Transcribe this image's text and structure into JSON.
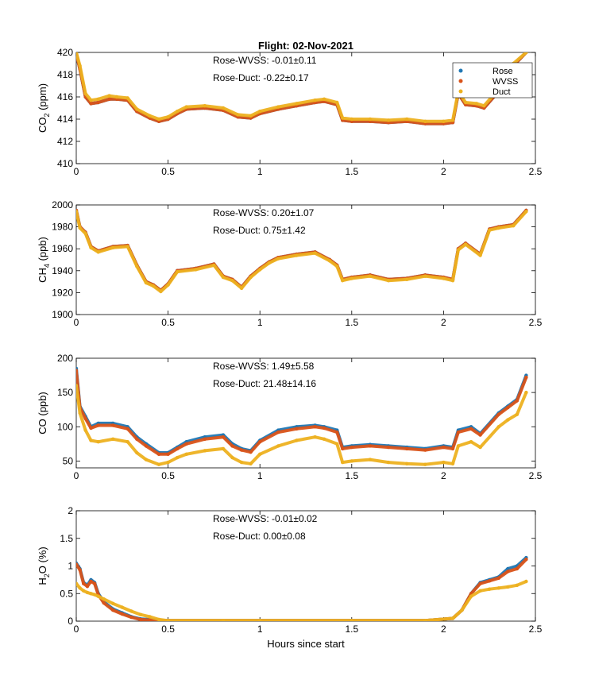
{
  "title": "Flight: 02-Nov-2021",
  "x_label": "Hours since start",
  "colors": {
    "Rose": "#1f77b4",
    "WVSS": "#d95319",
    "Duct": "#edb120"
  },
  "legend_entries": [
    "Rose",
    "WVSS",
    "Duct"
  ],
  "chart_data": [
    {
      "type": "scatter",
      "ylabel_main": "CO",
      "ylabel_sub": "2",
      "ylabel_unit": " (ppm)",
      "xlim": [
        0,
        2.5
      ],
      "ylim": [
        410,
        420
      ],
      "xticks": [
        "0",
        "0.5",
        "1",
        "1.5",
        "2",
        "2.5"
      ],
      "yticks": [
        "410",
        "412",
        "414",
        "416",
        "418",
        "420"
      ],
      "legend": {
        "placement": "top-right"
      },
      "annotations": [
        "Rose-WVSS: -0.01±0.11",
        "Rose-Duct: -0.22±0.17"
      ],
      "series": [
        {
          "name": "Rose",
          "x": [
            0,
            0.02,
            0.05,
            0.08,
            0.12,
            0.18,
            0.22,
            0.28,
            0.33,
            0.4,
            0.45,
            0.5,
            0.55,
            0.6,
            0.7,
            0.8,
            0.88,
            0.95,
            1.0,
            1.1,
            1.2,
            1.3,
            1.35,
            1.42,
            1.45,
            1.5,
            1.6,
            1.7,
            1.8,
            1.9,
            2.0,
            2.05,
            2.08,
            2.12,
            2.18,
            2.22,
            2.3,
            2.38,
            2.45
          ],
          "y": [
            419.9,
            418.5,
            416,
            415.4,
            415.5,
            415.8,
            415.8,
            415.7,
            414.7,
            414.1,
            413.8,
            414,
            414.5,
            414.9,
            415,
            414.8,
            414.2,
            414.1,
            414.5,
            414.9,
            415.2,
            415.5,
            415.6,
            415.3,
            413.9,
            413.8,
            413.8,
            413.7,
            413.8,
            413.6,
            413.6,
            413.7,
            416.3,
            415.3,
            415.2,
            415,
            416.5,
            418.8,
            420
          ]
        },
        {
          "name": "WVSS",
          "x": [
            0,
            0.02,
            0.05,
            0.08,
            0.12,
            0.18,
            0.22,
            0.28,
            0.33,
            0.4,
            0.45,
            0.5,
            0.55,
            0.6,
            0.7,
            0.8,
            0.88,
            0.95,
            1.0,
            1.1,
            1.2,
            1.3,
            1.35,
            1.42,
            1.45,
            1.5,
            1.6,
            1.7,
            1.8,
            1.9,
            2.0,
            2.05,
            2.08,
            2.12,
            2.18,
            2.22,
            2.3,
            2.38,
            2.45
          ],
          "y": [
            419.9,
            418.5,
            416,
            415.4,
            415.5,
            415.8,
            415.8,
            415.7,
            414.7,
            414.1,
            413.8,
            414,
            414.5,
            414.9,
            415,
            414.8,
            414.2,
            414.1,
            414.5,
            414.9,
            415.2,
            415.5,
            415.6,
            415.3,
            413.9,
            413.8,
            413.8,
            413.7,
            413.8,
            413.6,
            413.6,
            413.7,
            416.3,
            415.3,
            415.2,
            415,
            416.5,
            418.8,
            420
          ]
        },
        {
          "name": "Duct",
          "x": [
            0,
            0.02,
            0.05,
            0.08,
            0.12,
            0.18,
            0.22,
            0.28,
            0.33,
            0.4,
            0.45,
            0.5,
            0.55,
            0.6,
            0.7,
            0.8,
            0.88,
            0.95,
            1.0,
            1.1,
            1.2,
            1.3,
            1.35,
            1.42,
            1.45,
            1.5,
            1.6,
            1.7,
            1.8,
            1.9,
            2.0,
            2.05,
            2.08,
            2.12,
            2.18,
            2.22,
            2.3,
            2.38,
            2.45
          ],
          "y": [
            420,
            418.8,
            416.3,
            415.7,
            415.8,
            416.1,
            416,
            415.9,
            414.9,
            414.3,
            414,
            414.2,
            414.7,
            415.1,
            415.2,
            415,
            414.4,
            414.3,
            414.7,
            415.1,
            415.4,
            415.7,
            415.8,
            415.5,
            414.1,
            414,
            414,
            413.9,
            414,
            413.8,
            413.8,
            413.9,
            416.5,
            415.5,
            415.4,
            415.2,
            416.7,
            419,
            420
          ]
        }
      ]
    },
    {
      "type": "scatter",
      "ylabel_main": "CH",
      "ylabel_sub": "4",
      "ylabel_unit": " (ppb)",
      "xlim": [
        0,
        2.5
      ],
      "ylim": [
        1900,
        2000
      ],
      "xticks": [
        "0",
        "0.5",
        "1",
        "1.5",
        "2",
        "2.5"
      ],
      "yticks": [
        "1900",
        "1920",
        "1940",
        "1960",
        "1980",
        "2000"
      ],
      "annotations": [
        "Rose-WVSS: 0.20±1.07",
        "Rose-Duct: 0.75±1.42"
      ],
      "series": [
        {
          "name": "Rose",
          "x": [
            0,
            0.02,
            0.05,
            0.08,
            0.12,
            0.2,
            0.28,
            0.33,
            0.38,
            0.42,
            0.46,
            0.5,
            0.55,
            0.65,
            0.75,
            0.8,
            0.85,
            0.9,
            0.95,
            1.0,
            1.05,
            1.1,
            1.2,
            1.3,
            1.38,
            1.42,
            1.45,
            1.5,
            1.6,
            1.7,
            1.8,
            1.9,
            2.0,
            2.05,
            2.08,
            2.12,
            2.2,
            2.25,
            2.3,
            2.38,
            2.45
          ],
          "y": [
            1995,
            1980,
            1975,
            1962,
            1958,
            1962,
            1963,
            1945,
            1930,
            1927,
            1922,
            1928,
            1940,
            1942,
            1946,
            1935,
            1932,
            1925,
            1935,
            1942,
            1948,
            1952,
            1955,
            1957,
            1950,
            1945,
            1932,
            1934,
            1936,
            1932,
            1933,
            1936,
            1934,
            1932,
            1960,
            1965,
            1955,
            1978,
            1980,
            1982,
            1995
          ]
        },
        {
          "name": "WVSS",
          "x": [
            0,
            0.02,
            0.05,
            0.08,
            0.12,
            0.2,
            0.28,
            0.33,
            0.38,
            0.42,
            0.46,
            0.5,
            0.55,
            0.65,
            0.75,
            0.8,
            0.85,
            0.9,
            0.95,
            1.0,
            1.05,
            1.1,
            1.2,
            1.3,
            1.38,
            1.42,
            1.45,
            1.5,
            1.6,
            1.7,
            1.8,
            1.9,
            2.0,
            2.05,
            2.08,
            2.12,
            2.2,
            2.25,
            2.3,
            2.38,
            2.45
          ],
          "y": [
            1995,
            1980,
            1975,
            1962,
            1958,
            1962,
            1963,
            1945,
            1930,
            1927,
            1922,
            1928,
            1940,
            1942,
            1946,
            1935,
            1932,
            1925,
            1935,
            1942,
            1948,
            1952,
            1955,
            1957,
            1950,
            1945,
            1932,
            1934,
            1936,
            1932,
            1933,
            1936,
            1934,
            1932,
            1960,
            1965,
            1955,
            1978,
            1980,
            1982,
            1995
          ]
        },
        {
          "name": "Duct",
          "x": [
            0,
            0.02,
            0.05,
            0.08,
            0.12,
            0.2,
            0.28,
            0.33,
            0.38,
            0.42,
            0.46,
            0.5,
            0.55,
            0.65,
            0.75,
            0.8,
            0.85,
            0.9,
            0.95,
            1.0,
            1.05,
            1.1,
            1.2,
            1.3,
            1.38,
            1.42,
            1.45,
            1.5,
            1.6,
            1.7,
            1.8,
            1.9,
            2.0,
            2.05,
            2.08,
            2.12,
            2.2,
            2.25,
            2.3,
            2.38,
            2.45
          ],
          "y": [
            1994,
            1979,
            1974,
            1961,
            1957,
            1961,
            1962,
            1944,
            1929,
            1926,
            1921,
            1927,
            1939,
            1941,
            1945,
            1934,
            1931,
            1924,
            1934,
            1941,
            1947,
            1951,
            1954,
            1956,
            1949,
            1944,
            1931,
            1933,
            1935,
            1931,
            1932,
            1935,
            1933,
            1931,
            1959,
            1964,
            1954,
            1977,
            1979,
            1981,
            1994
          ]
        }
      ]
    },
    {
      "type": "scatter",
      "ylabel_main": "CO (ppb)",
      "ylabel_sub": "",
      "ylabel_unit": "",
      "xlim": [
        0,
        2.5
      ],
      "ylim": [
        40,
        200
      ],
      "xticks": [
        "0",
        "0.5",
        "1",
        "1.5",
        "2",
        "2.5"
      ],
      "yticks": [
        "50",
        "100",
        "150",
        "200"
      ],
      "annotations": [
        "Rose-WVSS: 1.49±5.58",
        "Rose-Duct: 21.48±14.16"
      ],
      "series": [
        {
          "name": "Rose",
          "x": [
            0,
            0.02,
            0.05,
            0.08,
            0.12,
            0.2,
            0.28,
            0.33,
            0.38,
            0.45,
            0.5,
            0.55,
            0.6,
            0.7,
            0.8,
            0.85,
            0.9,
            0.95,
            1.0,
            1.1,
            1.2,
            1.3,
            1.35,
            1.42,
            1.45,
            1.5,
            1.6,
            1.7,
            1.8,
            1.9,
            2.0,
            2.05,
            2.08,
            2.15,
            2.2,
            2.3,
            2.35,
            2.4,
            2.45
          ],
          "y": [
            185,
            130,
            115,
            100,
            105,
            105,
            100,
            85,
            75,
            62,
            62,
            70,
            78,
            85,
            88,
            75,
            68,
            65,
            80,
            95,
            100,
            102,
            100,
            95,
            70,
            72,
            74,
            72,
            70,
            68,
            72,
            70,
            95,
            100,
            90,
            120,
            130,
            140,
            175
          ]
        },
        {
          "name": "WVSS",
          "x": [
            0,
            0.02,
            0.05,
            0.08,
            0.12,
            0.2,
            0.28,
            0.33,
            0.38,
            0.45,
            0.5,
            0.55,
            0.6,
            0.7,
            0.8,
            0.85,
            0.9,
            0.95,
            1.0,
            1.1,
            1.2,
            1.3,
            1.35,
            1.42,
            1.45,
            1.5,
            1.6,
            1.7,
            1.8,
            1.9,
            2.0,
            2.05,
            2.08,
            2.15,
            2.2,
            2.3,
            2.35,
            2.4,
            2.45
          ],
          "y": [
            182,
            128,
            112,
            98,
            102,
            102,
            97,
            82,
            72,
            60,
            60,
            68,
            75,
            82,
            85,
            72,
            66,
            63,
            78,
            92,
            97,
            100,
            98,
            92,
            68,
            70,
            72,
            70,
            68,
            66,
            70,
            68,
            92,
            97,
            88,
            118,
            128,
            138,
            172
          ]
        },
        {
          "name": "Duct",
          "x": [
            0,
            0.02,
            0.05,
            0.08,
            0.12,
            0.2,
            0.28,
            0.33,
            0.38,
            0.45,
            0.5,
            0.55,
            0.6,
            0.7,
            0.8,
            0.85,
            0.9,
            0.95,
            1.0,
            1.1,
            1.2,
            1.3,
            1.35,
            1.42,
            1.45,
            1.5,
            1.6,
            1.7,
            1.8,
            1.9,
            2.0,
            2.05,
            2.08,
            2.15,
            2.2,
            2.3,
            2.35,
            2.4,
            2.45
          ],
          "y": [
            160,
            120,
            95,
            80,
            78,
            82,
            78,
            62,
            52,
            45,
            48,
            55,
            60,
            65,
            68,
            55,
            48,
            46,
            60,
            72,
            80,
            85,
            82,
            75,
            48,
            50,
            52,
            48,
            46,
            45,
            48,
            46,
            72,
            78,
            70,
            100,
            110,
            118,
            150
          ]
        }
      ]
    },
    {
      "type": "scatter",
      "ylabel_main": "H",
      "ylabel_sub": "2",
      "ylabel_unit": "O (%)",
      "xlim": [
        0,
        2.5
      ],
      "ylim": [
        0,
        2
      ],
      "xticks": [
        "0",
        "0.5",
        "1",
        "1.5",
        "2",
        "2.5"
      ],
      "yticks": [
        "0",
        "0.5",
        "1",
        "1.5",
        "2"
      ],
      "annotations": [
        "Rose-WVSS: -0.01±0.02",
        "Rose-Duct: 0.00±0.08"
      ],
      "xlabel": "Hours since start",
      "series": [
        {
          "name": "Rose",
          "x": [
            0,
            0.02,
            0.04,
            0.06,
            0.08,
            0.1,
            0.12,
            0.15,
            0.2,
            0.25,
            0.3,
            0.35,
            0.4,
            0.45,
            0.5,
            0.8,
            1.0,
            1.5,
            1.9,
            2.05,
            2.1,
            2.15,
            2.2,
            2.25,
            2.3,
            2.35,
            2.4,
            2.45
          ],
          "y": [
            1.05,
            0.95,
            0.7,
            0.65,
            0.75,
            0.7,
            0.5,
            0.35,
            0.22,
            0.15,
            0.08,
            0.04,
            0.03,
            0.02,
            0.01,
            0.01,
            0.01,
            0.01,
            0.01,
            0.05,
            0.2,
            0.5,
            0.7,
            0.75,
            0.8,
            0.95,
            1.0,
            1.15
          ]
        },
        {
          "name": "WVSS",
          "x": [
            0,
            0.02,
            0.04,
            0.06,
            0.08,
            0.1,
            0.12,
            0.15,
            0.2,
            0.25,
            0.3,
            0.35,
            0.4,
            0.45,
            0.5,
            0.8,
            1.0,
            1.5,
            1.9,
            2.05,
            2.1,
            2.15,
            2.2,
            2.25,
            2.3,
            2.35,
            2.4,
            2.45
          ],
          "y": [
            1.03,
            0.93,
            0.68,
            0.63,
            0.72,
            0.68,
            0.48,
            0.33,
            0.2,
            0.13,
            0.07,
            0.03,
            0.02,
            0.01,
            0.01,
            0.01,
            0.01,
            0.01,
            0.01,
            0.05,
            0.2,
            0.5,
            0.68,
            0.73,
            0.78,
            0.9,
            0.95,
            1.12
          ]
        },
        {
          "name": "Duct",
          "x": [
            0,
            0.02,
            0.04,
            0.06,
            0.08,
            0.1,
            0.12,
            0.15,
            0.2,
            0.25,
            0.3,
            0.35,
            0.4,
            0.45,
            0.5,
            0.8,
            1.0,
            1.5,
            1.9,
            2.05,
            2.1,
            2.15,
            2.2,
            2.25,
            2.3,
            2.35,
            2.4,
            2.45
          ],
          "y": [
            0.68,
            0.6,
            0.55,
            0.52,
            0.5,
            0.48,
            0.45,
            0.4,
            0.32,
            0.25,
            0.18,
            0.12,
            0.08,
            0.03,
            0.01,
            0.01,
            0.01,
            0.01,
            0.01,
            0.05,
            0.2,
            0.45,
            0.55,
            0.58,
            0.6,
            0.62,
            0.65,
            0.72
          ]
        }
      ]
    }
  ]
}
